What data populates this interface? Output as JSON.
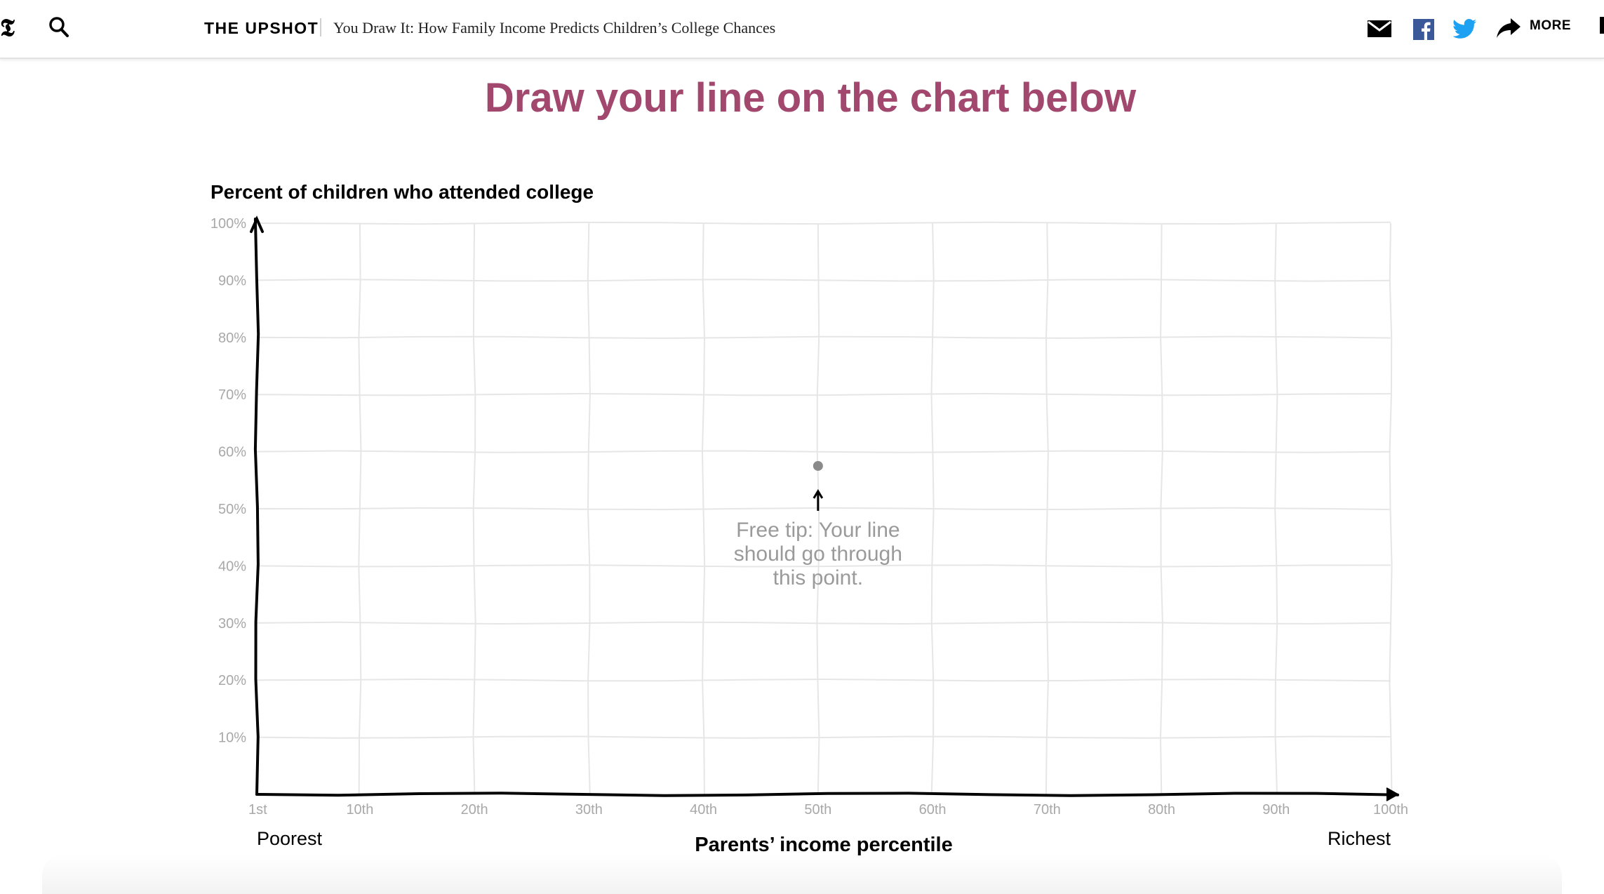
{
  "header": {
    "section": "THE UPSHOT",
    "headline": "You Draw It: How Family Income Predicts Children’s College Chances",
    "more_label": "MORE",
    "icons": [
      "nyt-logo-icon",
      "search-icon",
      "mail-icon",
      "facebook-icon",
      "twitter-icon",
      "share-arrow-icon"
    ],
    "colors": {
      "facebook": "#3b5998",
      "twitter": "#1da1f2"
    }
  },
  "prompt_text": "Draw your line on the chart below",
  "prompt_color": "#a2486e",
  "chart_data": {
    "type": "line",
    "title": "Percent of children who attended college",
    "xlabel": "Parents’ income percentile",
    "ylabel": "",
    "x_ticks": [
      {
        "value": 1,
        "label": "1st"
      },
      {
        "value": 10,
        "label": "10th"
      },
      {
        "value": 20,
        "label": "20th"
      },
      {
        "value": 30,
        "label": "30th"
      },
      {
        "value": 40,
        "label": "40th"
      },
      {
        "value": 50,
        "label": "50th"
      },
      {
        "value": 60,
        "label": "60th"
      },
      {
        "value": 70,
        "label": "70th"
      },
      {
        "value": 80,
        "label": "80th"
      },
      {
        "value": 90,
        "label": "90th"
      },
      {
        "value": 100,
        "label": "100th"
      }
    ],
    "y_ticks": [
      {
        "value": 10,
        "label": "10%"
      },
      {
        "value": 20,
        "label": "20%"
      },
      {
        "value": 30,
        "label": "30%"
      },
      {
        "value": 40,
        "label": "40%"
      },
      {
        "value": 50,
        "label": "50%"
      },
      {
        "value": 60,
        "label": "60%"
      },
      {
        "value": 70,
        "label": "70%"
      },
      {
        "value": 80,
        "label": "80%"
      },
      {
        "value": 90,
        "label": "90%"
      },
      {
        "value": 100,
        "label": "100%"
      }
    ],
    "xlim": [
      1,
      100
    ],
    "ylim": [
      0,
      100
    ],
    "grid": true,
    "x_end_labels": {
      "left": "Poorest",
      "right": "Richest"
    },
    "hint_point": {
      "x": 50,
      "y": 57.5
    },
    "hint_text": [
      "Free tip: Your line",
      "should go through",
      "this point."
    ],
    "series": []
  }
}
